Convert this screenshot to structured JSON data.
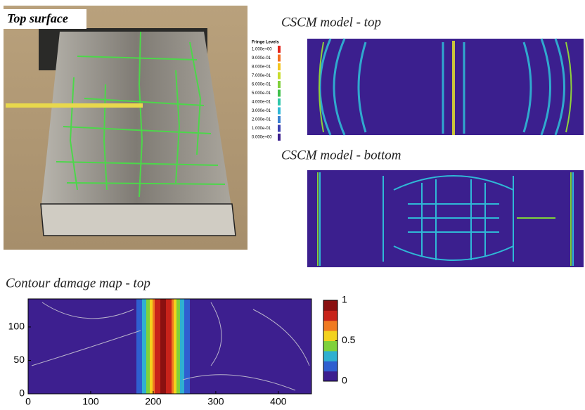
{
  "photo": {
    "label": "Top surface"
  },
  "fringe_legend": {
    "title": "Fringe Levels",
    "levels": [
      "1.000e+00",
      "9.000e-01",
      "8.000e-01",
      "7.000e-01",
      "6.000e-01",
      "5.000e-01",
      "4.000e-01",
      "3.000e-01",
      "2.000e-01",
      "1.000e-01",
      "0.000e+00"
    ]
  },
  "panels": [
    {
      "title": "CSCM model - top"
    },
    {
      "title": "CSCM model - bottom"
    }
  ],
  "contour_map": {
    "title": "Contour damage map - top",
    "xlim": [
      0,
      453
    ],
    "xticks": [
      0,
      100,
      200,
      300,
      400
    ],
    "ylim": [
      0,
      142
    ],
    "yticks": [
      0,
      50,
      100
    ],
    "colorbar": {
      "lim": [
        0,
        1
      ],
      "ticks": [
        0,
        0.5,
        1
      ]
    }
  }
}
